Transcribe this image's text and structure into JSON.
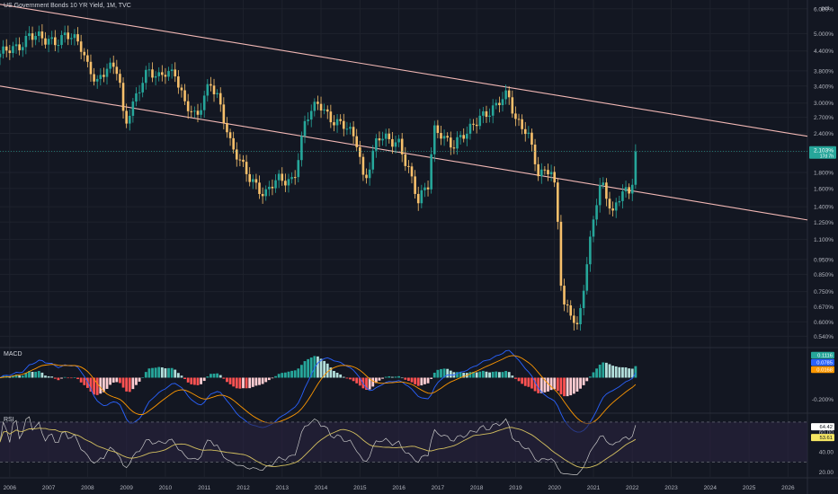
{
  "header": {
    "title": "US Government Bonds 10 YR Yield, 1M, TVC",
    "unit": "pct"
  },
  "colors": {
    "background": "#131722",
    "grid": "#1e222d",
    "up": "#26a69a",
    "down": "#f7c06b",
    "channel": "#f2b8b5",
    "macd_line": "#2962ff",
    "signal_line": "#ff9800",
    "hist_up_strong": "#26a69a",
    "hist_up_weak": "#b2dfdb",
    "hist_down_strong": "#ff5252",
    "hist_down_weak": "#ffcdd2",
    "rsi_line": "#c9c9c9",
    "rsi_ma": "#d4c060",
    "rsi_band": "#2a2340"
  },
  "chart_data": [
    {
      "type": "candlestick",
      "name": "price",
      "y_scale": "log",
      "ylim": [
        0.5,
        6.4
      ],
      "xlim": [
        2005.75,
        2026.5
      ],
      "x_ticks": [
        "2006",
        "2007",
        "2008",
        "2009",
        "2010",
        "2011",
        "2012",
        "2013",
        "2014",
        "2015",
        "2016",
        "2017",
        "2018",
        "2019",
        "2020",
        "2021",
        "2022",
        "2023",
        "2024",
        "2025",
        "2026"
      ],
      "y_ticks": [
        "6.000%",
        "5.000%",
        "4.400%",
        "3.800%",
        "3.400%",
        "3.000%",
        "2.700%",
        "2.400%",
        "2.100%",
        "1.800%",
        "1.600%",
        "1.400%",
        "1.250%",
        "1.100%",
        "0.950%",
        "0.850%",
        "0.750%",
        "0.670%",
        "0.600%",
        "0.540%"
      ],
      "last_value_label": "2.103%",
      "last_value_sub": "17d 7h",
      "anchors": [
        [
          2005.75,
          4.2
        ],
        [
          2006.2,
          4.6
        ],
        [
          2006.5,
          5.0
        ],
        [
          2006.9,
          4.65
        ],
        [
          2007.2,
          4.8
        ],
        [
          2007.45,
          5.1
        ],
        [
          2007.8,
          4.5
        ],
        [
          2008.0,
          3.9
        ],
        [
          2008.25,
          3.6
        ],
        [
          2008.5,
          3.95
        ],
        [
          2008.8,
          3.7
        ],
        [
          2008.95,
          2.45
        ],
        [
          2009.1,
          2.9
        ],
        [
          2009.4,
          3.6
        ],
        [
          2009.55,
          3.8
        ],
        [
          2009.8,
          3.5
        ],
        [
          2010.0,
          3.75
        ],
        [
          2010.25,
          3.85
        ],
        [
          2010.5,
          3.0
        ],
        [
          2010.8,
          2.6
        ],
        [
          2011.15,
          3.6
        ],
        [
          2011.35,
          3.2
        ],
        [
          2011.7,
          2.1
        ],
        [
          2011.9,
          1.95
        ],
        [
          2012.3,
          1.7
        ],
        [
          2012.55,
          1.5
        ],
        [
          2012.9,
          1.7
        ],
        [
          2013.3,
          1.75
        ],
        [
          2013.6,
          2.6
        ],
        [
          2013.95,
          3.0
        ],
        [
          2014.3,
          2.7
        ],
        [
          2014.6,
          2.5
        ],
        [
          2014.95,
          2.2
        ],
        [
          2015.1,
          1.7
        ],
        [
          2015.45,
          2.35
        ],
        [
          2015.8,
          2.2
        ],
        [
          2016.0,
          2.25
        ],
        [
          2016.25,
          1.9
        ],
        [
          2016.5,
          1.45
        ],
        [
          2016.75,
          1.6
        ],
        [
          2016.9,
          2.45
        ],
        [
          2017.1,
          2.45
        ],
        [
          2017.4,
          2.2
        ],
        [
          2017.75,
          2.35
        ],
        [
          2018.1,
          2.8
        ],
        [
          2018.5,
          2.9
        ],
        [
          2018.8,
          3.15
        ],
        [
          2019.0,
          2.7
        ],
        [
          2019.3,
          2.5
        ],
        [
          2019.6,
          1.7
        ],
        [
          2019.9,
          1.85
        ],
        [
          2020.05,
          1.55
        ],
        [
          2020.2,
          0.7
        ],
        [
          2020.4,
          0.65
        ],
        [
          2020.6,
          0.55
        ],
        [
          2020.8,
          0.85
        ],
        [
          2021.05,
          1.45
        ],
        [
          2021.2,
          1.74
        ],
        [
          2021.5,
          1.3
        ],
        [
          2021.75,
          1.55
        ],
        [
          2021.95,
          1.55
        ],
        [
          2022.08,
          2.1
        ]
      ],
      "channel_upper": [
        [
          2005.75,
          6.2
        ],
        [
          2026.5,
          2.35
        ]
      ],
      "channel_lower": [
        [
          2005.75,
          3.4
        ],
        [
          2026.5,
          1.27
        ]
      ]
    },
    {
      "type": "macd",
      "name": "MACD",
      "ylim": [
        -0.32,
        0.27
      ],
      "y_ticks": [
        "0.200%",
        "-0.200%"
      ],
      "current": [
        "0.1116",
        "0.0785",
        "0.0168"
      ]
    },
    {
      "type": "rsi",
      "name": "RSI",
      "ylim": [
        15,
        78
      ],
      "bands": [
        70,
        30
      ],
      "y_ticks": [
        "60.00",
        "40.00",
        "20.00"
      ],
      "current": [
        "64.42",
        "53.61"
      ]
    }
  ]
}
